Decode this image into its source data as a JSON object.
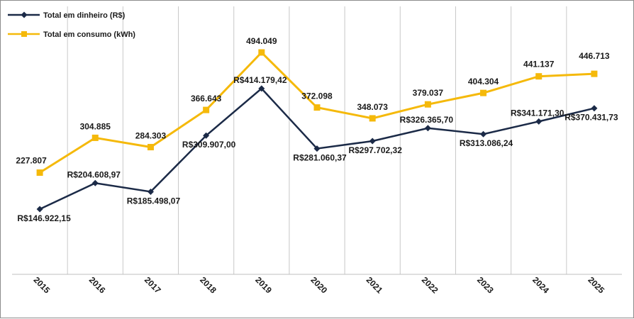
{
  "chart_data": {
    "type": "line",
    "title": "",
    "xlabel": "",
    "ylabel": "",
    "grid": "vertical",
    "legend_position": "top-left",
    "categories": [
      "2015",
      "2016",
      "2017",
      "2018",
      "2019",
      "2020",
      "2021",
      "2022",
      "2023",
      "2024",
      "2025"
    ],
    "series": [
      {
        "name": "Total em dinheiro (R$)",
        "color": "#1b2a47",
        "marker": "diamond",
        "values": [
          146922.15,
          204608.97,
          185498.07,
          309907.0,
          414179.42,
          281060.37,
          297702.32,
          326365.7,
          313086.24,
          341171.3,
          370431.73
        ],
        "labels": [
          "R$146.922,15",
          "R$204.608,97",
          "R$185.498,07",
          "R$309.907,00",
          "R$414.179,42",
          "R$281.060,37",
          "R$297.702,32",
          "R$326.365,70",
          "R$313.086,24",
          "R$341.171,30",
          "R$370.431,73"
        ],
        "label_sides": [
          "below",
          "above",
          "below",
          "below",
          "above",
          "below",
          "below",
          "above",
          "below",
          "above",
          "below"
        ]
      },
      {
        "name": "Total em consumo (kWh)",
        "color": "#f5b90a",
        "marker": "square",
        "values": [
          227807,
          304885,
          284303,
          366643,
          494049,
          372098,
          348073,
          379037,
          404304,
          441137,
          446713
        ],
        "labels": [
          "227.807",
          "304.885",
          "284.303",
          "366.643",
          "494.049",
          "372.098",
          "348.073",
          "379.037",
          "404.304",
          "441.137",
          "446.713"
        ],
        "label_sides": [
          "above",
          "above",
          "above",
          "above",
          "above",
          "above",
          "above",
          "above",
          "above",
          "above",
          "above"
        ]
      }
    ]
  }
}
